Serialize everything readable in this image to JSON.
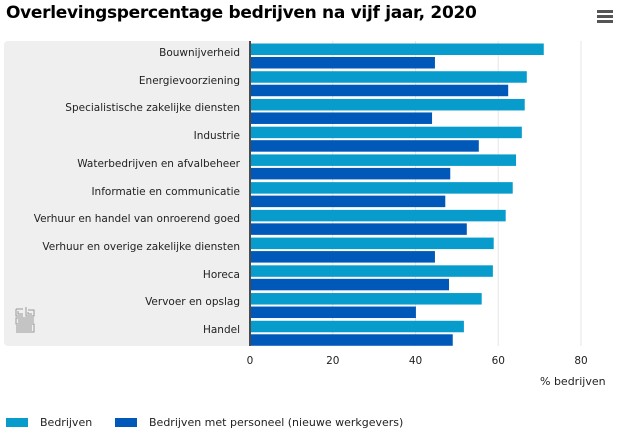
{
  "header": {
    "title": "Overlevingspercentage bedrijven na vijf jaar, 2020",
    "menu_icon": "hamburger-menu-icon"
  },
  "logo": {
    "name": "cbs-logo-icon"
  },
  "colors": {
    "bedrijven": "#079ccc",
    "personeel": "#0058b8",
    "panel": "#efefef",
    "grid": "#e6e6e6",
    "axis": "#4a4a4a"
  },
  "chart_data": {
    "type": "bar",
    "orientation": "horizontal",
    "title": "Overlevingspercentage bedrijven na vijf jaar, 2020",
    "xlabel": "% bedrijven",
    "ylabel": "",
    "xlim": [
      0,
      80
    ],
    "xticks": [
      "0",
      "20",
      "40",
      "60",
      "80"
    ],
    "grid": true,
    "legend_position": "bottom-left",
    "categories": [
      "Bouwnijverheid",
      "Energievoorziening",
      "Specialistische zakelijke diensten",
      "Industrie",
      "Waterbedrijven en afvalbeheer",
      "Informatie en communicatie",
      "Verhuur en handel van onroerend goed",
      "Verhuur en overige zakelijke diensten",
      "Horeca",
      "Vervoer en opslag",
      "Handel"
    ],
    "series": [
      {
        "name": "Bedrijven",
        "values": [
          71.0,
          66.9,
          66.4,
          65.7,
          64.3,
          63.5,
          61.8,
          58.9,
          58.7,
          56.0,
          51.7
        ]
      },
      {
        "name": "Bedrijven met personeel (nieuwe werkgevers)",
        "values": [
          44.7,
          62.4,
          44.0,
          55.3,
          48.4,
          47.2,
          52.4,
          44.7,
          48.1,
          40.1,
          49.0
        ]
      }
    ]
  }
}
